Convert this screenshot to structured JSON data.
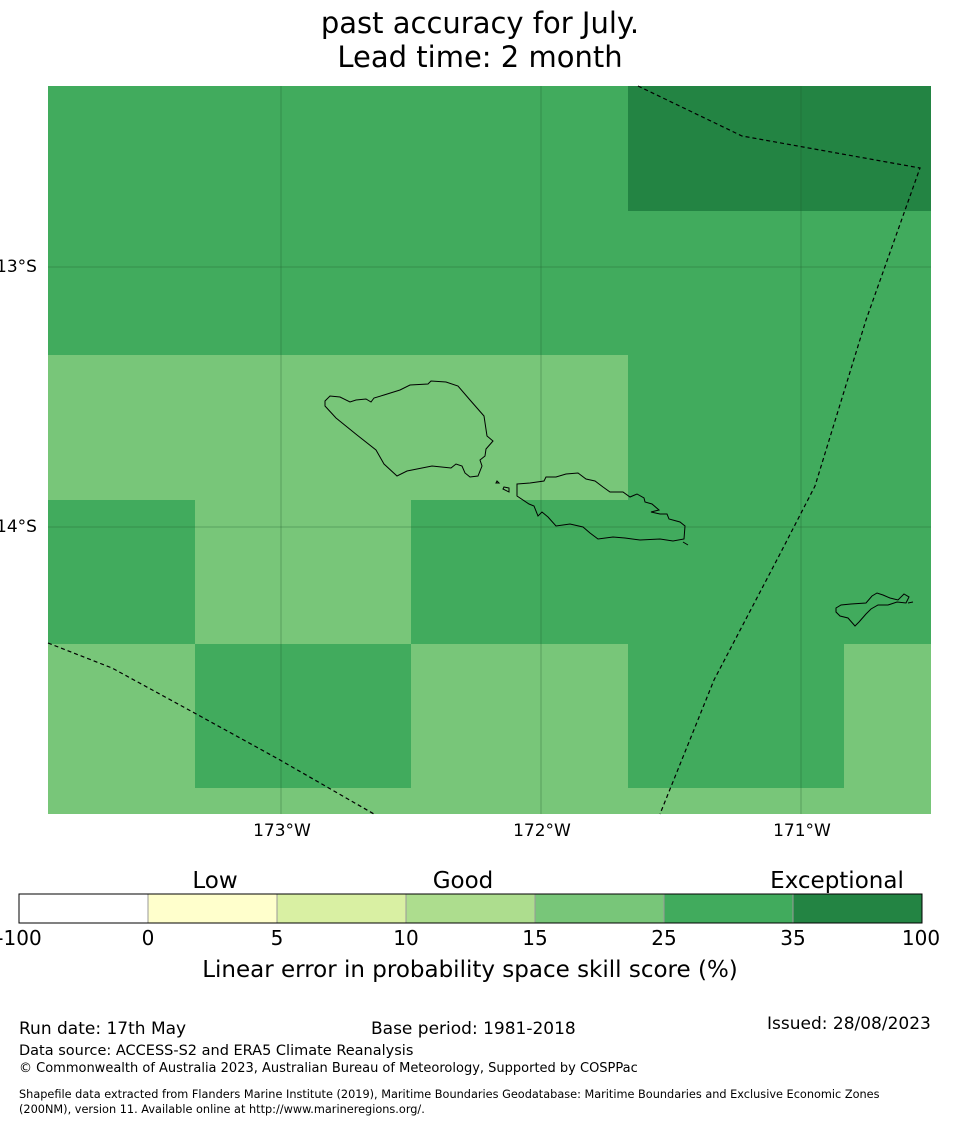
{
  "title": {
    "line1": "past accuracy for July.",
    "line2": "Lead time: 2 month"
  },
  "map": {
    "lat_labels": [
      "13°S",
      "14°S"
    ],
    "lon_labels": [
      "173°W",
      "172°W",
      "171°W"
    ],
    "colors": {
      "class_15_25": "#78c679",
      "class_25_35": "#41ab5d",
      "class_35_100": "#238443"
    }
  },
  "colorbar": {
    "categories": [
      "Low",
      "Good",
      "Exceptional"
    ],
    "ticks": [
      "-100",
      "0",
      "5",
      "10",
      "15",
      "25",
      "35",
      "100"
    ],
    "colors": [
      "#ffffff",
      "#ffffcc",
      "#d9f0a3",
      "#addd8e",
      "#78c679",
      "#41ab5d",
      "#238443"
    ],
    "label": "Linear error in probability space skill score (%)"
  },
  "footer": {
    "run_date": "Run date: 17th May",
    "base_period": "Base period: 1981-2018",
    "issued": "Issued: 28/08/2023",
    "data_source": "Data source: ACCESS-S2 and ERA5 Climate Reanalysis",
    "copyright": "© Commonwealth of Australia 2023, Australian Bureau of Meteorology, Supported by COSPPac",
    "shapefile_line1": "Shapefile data extracted from Flanders Marine Institute (2019), Maritime Boundaries Geodatabase: Maritime Boundaries and Exclusive Economic Zones",
    "shapefile_line2": "(200NM), version 11. Available online at http://www.marineregions.org/."
  }
}
